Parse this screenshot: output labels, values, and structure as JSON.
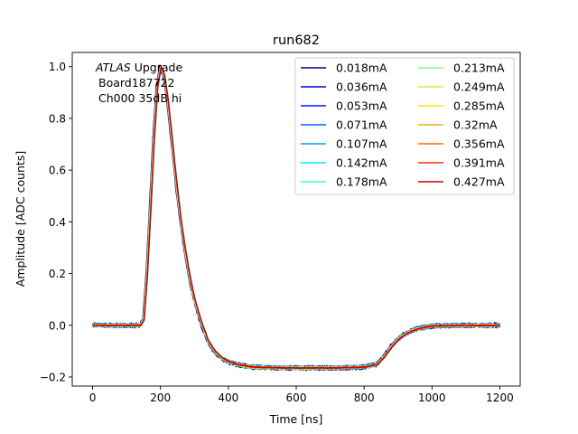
{
  "chart_data": {
    "type": "line",
    "title": "run682",
    "xlabel": "Time [ns]",
    "ylabel": "Amplitude [ADC counts]",
    "xlim": [
      -60,
      1260
    ],
    "ylim": [
      -0.235,
      1.055
    ],
    "xticks": [
      0,
      200,
      400,
      600,
      800,
      1000,
      1200
    ],
    "yticks": [
      -0.2,
      0.0,
      0.2,
      0.4,
      0.6,
      0.8,
      1.0
    ],
    "xtick_labels": [
      "0",
      "200",
      "400",
      "600",
      "800",
      "1000",
      "1200"
    ],
    "ytick_labels": [
      "−0.2",
      "0.0",
      "0.2",
      "0.4",
      "0.6",
      "0.8",
      "1.0"
    ],
    "grid": false,
    "legend_position": "top-right",
    "legend_columns": 2,
    "annotation": {
      "line1_italic": "ATLAS",
      "line1_rest": " Upgrade",
      "line2": "Board187722",
      "line3": "Ch000 35dB hi"
    },
    "pulse_shape": {
      "x": [
        0,
        140,
        150,
        160,
        170,
        180,
        190,
        200,
        210,
        220,
        230,
        240,
        250,
        260,
        270,
        280,
        290,
        300,
        320,
        340,
        360,
        380,
        400,
        420,
        440,
        460,
        500,
        600,
        700,
        800,
        840,
        860,
        880,
        900,
        920,
        940,
        960,
        980,
        1000,
        1050,
        1100,
        1150,
        1200
      ],
      "y": [
        0.0,
        0.0,
        0.02,
        0.2,
        0.45,
        0.72,
        0.92,
        1.0,
        0.97,
        0.88,
        0.76,
        0.63,
        0.51,
        0.4,
        0.31,
        0.23,
        0.16,
        0.1,
        0.01,
        -0.06,
        -0.1,
        -0.125,
        -0.14,
        -0.15,
        -0.155,
        -0.16,
        -0.163,
        -0.165,
        -0.165,
        -0.162,
        -0.15,
        -0.12,
        -0.085,
        -0.055,
        -0.035,
        -0.022,
        -0.013,
        -0.007,
        -0.003,
        -0.001,
        0.0,
        0.0,
        0.0
      ]
    },
    "series": [
      {
        "name": "0.018mA",
        "color": "#00007f"
      },
      {
        "name": "0.036mA",
        "color": "#0000c8"
      },
      {
        "name": "0.053mA",
        "color": "#0019ff"
      },
      {
        "name": "0.071mA",
        "color": "#0060ff"
      },
      {
        "name": "0.107mA",
        "color": "#00a4ff"
      },
      {
        "name": "0.142mA",
        "color": "#00e8ff"
      },
      {
        "name": "0.178mA",
        "color": "#3dffba"
      },
      {
        "name": "0.213mA",
        "color": "#7bff7b"
      },
      {
        "name": "0.249mA",
        "color": "#baff3d"
      },
      {
        "name": "0.285mA",
        "color": "#ffe600"
      },
      {
        "name": "0.32mA",
        "color": "#ffa700"
      },
      {
        "name": "0.356mA",
        "color": "#ff6800"
      },
      {
        "name": "0.391mA",
        "color": "#ff2900"
      },
      {
        "name": "0.427mA",
        "color": "#c80000"
      }
    ]
  }
}
